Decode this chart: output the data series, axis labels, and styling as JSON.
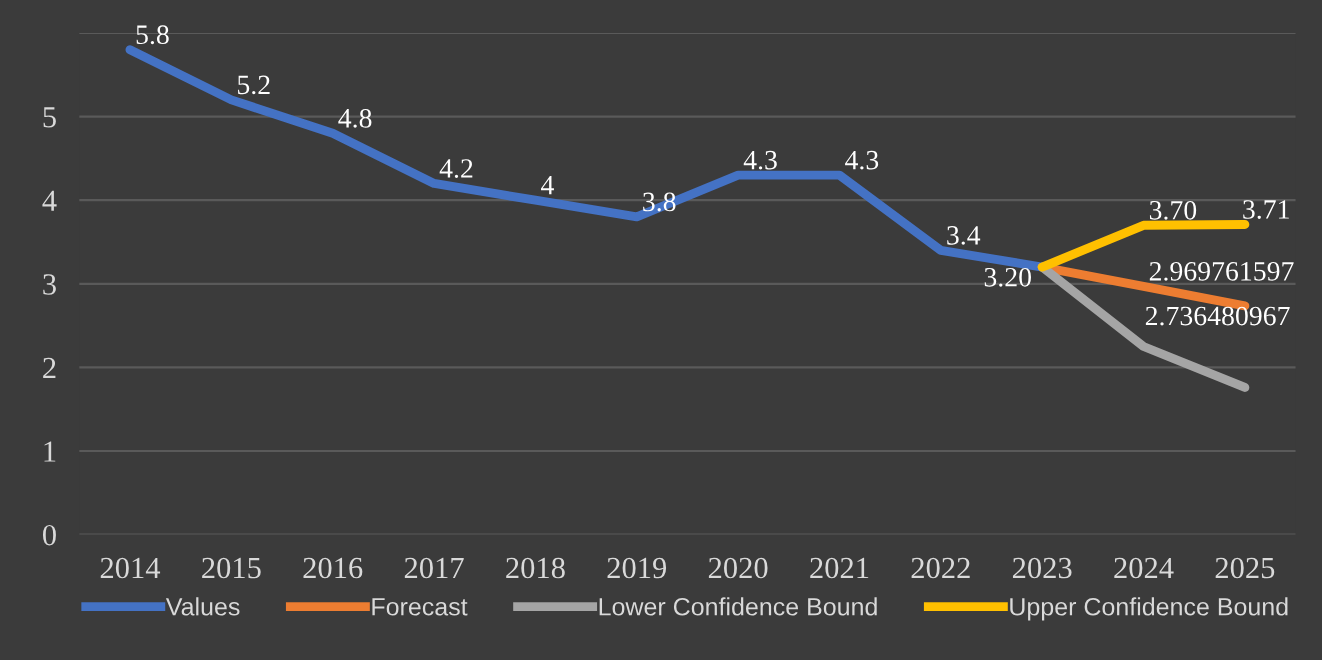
{
  "chart_data": {
    "type": "line",
    "categories": [
      "2014",
      "2015",
      "2016",
      "2017",
      "2018",
      "2019",
      "2020",
      "2021",
      "2022",
      "2023",
      "2024",
      "2025"
    ],
    "series": [
      {
        "name": "Values",
        "color": "#4472c4",
        "values": [
          5.8,
          5.2,
          4.8,
          4.2,
          4,
          3.8,
          4.3,
          4.3,
          3.4,
          3.2,
          null,
          null
        ],
        "value_labels": [
          "5.8",
          "5.2",
          "4.8",
          "4.2",
          "4",
          "3.8",
          "4.3",
          "4.3",
          "3.4",
          null,
          null,
          null
        ]
      },
      {
        "name": "Forecast",
        "color": "#ed7d31",
        "values": [
          null,
          null,
          null,
          null,
          null,
          null,
          null,
          null,
          null,
          3.2,
          2.969761597,
          2.736480967
        ],
        "value_labels": [
          null,
          null,
          null,
          null,
          null,
          null,
          null,
          null,
          null,
          "3.20",
          "2.969761597",
          "2.736480967"
        ]
      },
      {
        "name": "Lower Confidence Bound",
        "color": "#a5a5a5",
        "values": [
          null,
          null,
          null,
          null,
          null,
          null,
          null,
          null,
          null,
          3.2,
          2.25,
          1.76
        ]
      },
      {
        "name": "Upper Confidence Bound",
        "color": "#ffc000",
        "values": [
          null,
          null,
          null,
          null,
          null,
          null,
          null,
          null,
          null,
          3.2,
          3.7,
          3.71
        ],
        "value_labels": [
          null,
          null,
          null,
          null,
          null,
          null,
          null,
          null,
          null,
          null,
          "3.70",
          "3.71"
        ]
      }
    ],
    "ylim": [
      0,
      6
    ],
    "yticks": [
      0,
      1,
      2,
      3,
      4,
      5,
      {
        "value": 6,
        "label": null
      }
    ],
    "grid": "y",
    "legend": "bottom",
    "marker": "none",
    "line_style": "solid"
  }
}
